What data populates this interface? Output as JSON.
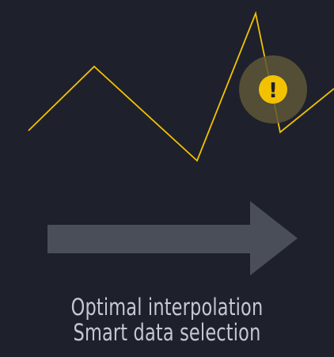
{
  "colors": {
    "background": "#1e212b",
    "line": "#f2c200",
    "warning_halo": "#5e5638",
    "warning_fill": "#f2c200",
    "warning_mark": "#1e212b",
    "arrow": "#4a4e58",
    "caption_text": "#c5c8d2"
  },
  "icons": {
    "warning": "exclamation-circle-icon",
    "arrow": "right-arrow-icon"
  },
  "warning": {
    "mark": "!"
  },
  "caption": {
    "line1": "Optimal interpolation",
    "line2": "Smart data selection"
  }
}
